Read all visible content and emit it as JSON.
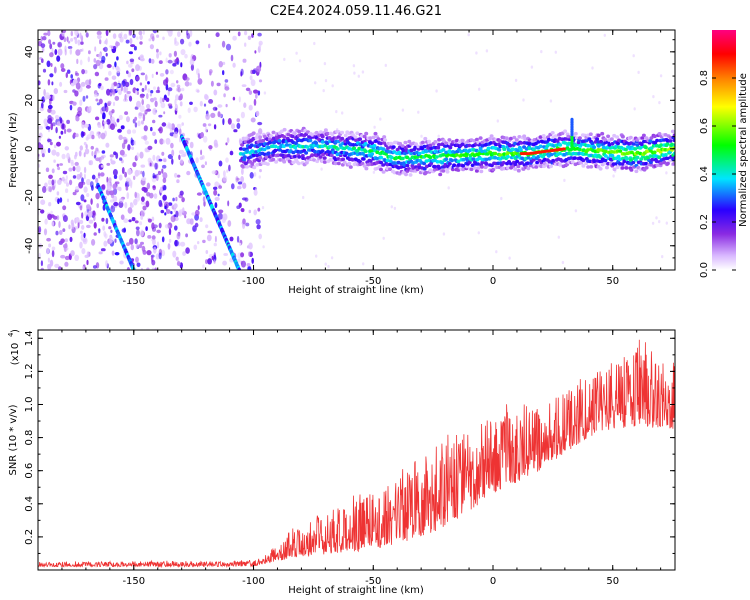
{
  "title": "C2E4.2024.059.11.46.G21",
  "chart_data": [
    {
      "type": "heatmap",
      "xlabel": "Height of straight line (km)",
      "ylabel": "Frequency (Hz)",
      "xlim": [
        -190,
        76
      ],
      "ylim": [
        -50,
        49
      ],
      "xticks": [
        -150,
        -100,
        -50,
        0,
        50
      ],
      "yticks": [
        -40,
        -20,
        0,
        20,
        40
      ],
      "colorbar": {
        "label": "Normalized spectral amplitude",
        "range": [
          0,
          1
        ],
        "ticks": [
          0.0,
          0.2,
          0.4,
          0.6,
          0.8
        ],
        "colormap": "rainbow",
        "colors": [
          "#ffffff",
          "#d9b8ff",
          "#8a2be2",
          "#2a00ff",
          "#00e5ff",
          "#00ff00",
          "#ffff00",
          "#ff7f00",
          "#ff0000",
          "#ff0080"
        ]
      },
      "features": {
        "left_diagonal_track": {
          "x": [
            -165,
            -150
          ],
          "y": [
            -15,
            -50
          ]
        },
        "right_diagonal_track": {
          "x": [
            -130,
            -106
          ],
          "y": [
            5,
            -50
          ]
        },
        "central_band": {
          "x": [
            -105,
            -90,
            -70,
            -50,
            -40,
            -20,
            0,
            15,
            30,
            45,
            60,
            75
          ],
          "y": [
            -2,
            1,
            1,
            -1,
            -4,
            -3,
            -2,
            -2,
            0,
            -1,
            -2,
            0
          ]
        },
        "spike": {
          "x": 33,
          "y_range": [
            0,
            12
          ]
        }
      }
    },
    {
      "type": "line",
      "xlabel": "Height of straight line (km)",
      "ylabel": "SNR (10 * v/v)",
      "scale_label": "(x10",
      "scale_exponent": "4",
      "xlim": [
        -190,
        76
      ],
      "ylim": [
        0,
        1.45
      ],
      "xticks": [
        -150,
        -100,
        -50,
        0,
        50
      ],
      "yticks": [
        0.2,
        0.4,
        0.6,
        0.8,
        1.0,
        1.2,
        1.4
      ],
      "line_color": "#ee3333",
      "envelope": {
        "x": [
          -190,
          -100,
          -95,
          -80,
          -60,
          -40,
          -20,
          -10,
          0,
          20,
          40,
          50,
          60,
          70,
          76
        ],
        "base": [
          0.02,
          0.02,
          0.04,
          0.08,
          0.1,
          0.15,
          0.25,
          0.35,
          0.45,
          0.6,
          0.8,
          0.85,
          0.85,
          0.85,
          0.85
        ],
        "peak": [
          0.05,
          0.06,
          0.1,
          0.3,
          0.45,
          0.6,
          0.8,
          0.95,
          1.0,
          1.05,
          1.2,
          1.3,
          1.45,
          1.3,
          1.25
        ]
      }
    }
  ]
}
